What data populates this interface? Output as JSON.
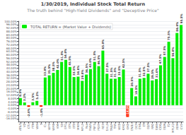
{
  "chart_data": {
    "type": "bar",
    "title": "1/30/2019, Individual Stock Total Return",
    "subtitle": "The truth behind \"High-Yield Dividends\" and \"Deceptive Price\"",
    "categories": [
      "AT&T",
      "VZ",
      "CTL",
      "FTR",
      "WIN",
      "T",
      "CL",
      "WPX",
      "WMB",
      "KMI",
      "SE",
      "EPD",
      "ETP",
      "ETE",
      "MMP",
      "MPLX",
      "PAA",
      "PAGP",
      "PBFX",
      "PSXP",
      "REX",
      "SHLX",
      "TRGP",
      "TRP",
      "WES",
      "KMI2",
      "OKE",
      "ENBL",
      "DCP",
      "ENB",
      "ET",
      "EQT",
      "RRC",
      "SWN",
      "COG",
      "EQM",
      "T2",
      "MPLX2",
      "XOM",
      "CVX"
    ],
    "series": [
      {
        "name": "TOTAL RETURN = (Market Value + Dividends)",
        "color": "#00ee00",
        "colors": [
          "#00ee00",
          "#00ee00",
          "#ff2200",
          "#00ee00",
          "#00ee00",
          "#ff2200",
          "#00ee00",
          "#00ee00",
          "#00ee00",
          "#00ee00",
          "#00ee00",
          "#00ee00",
          "#00ee00",
          "#00ee00",
          "#00ee00",
          "#00ee00",
          "#00ee00",
          "#00ee00",
          "#00ee00",
          "#00ee00",
          "#00ee00",
          "#00ee00",
          "#00ee00",
          "#00ee00",
          "#00ee00",
          "#00ee00",
          "#ff2200",
          "#00ee00",
          "#00ee00",
          "#00ee00",
          "#00ee00",
          "#00ee00",
          "#00ee00",
          "#00ee00",
          "#00ee00",
          "#00ee00",
          "#00ee00",
          "#00ee00",
          "#00ee00",
          "#00ee00"
        ],
        "values": [
          8.5,
          3.2,
          -2.0,
          3.5,
          5.2,
          -1.8,
          33.0,
          35.5,
          38.5,
          42.0,
          51.5,
          54.0,
          45.5,
          33.5,
          34.0,
          29.0,
          36.5,
          43.0,
          51.5,
          46.5,
          65.0,
          37.5,
          31.5,
          31.5,
          33.5,
          42.5,
          -14.0,
          20.5,
          10.5,
          31.5,
          32.5,
          37.5,
          29.5,
          31.0,
          47.5,
          57.5,
          75.5,
          56.0,
          86.0,
          95.5
        ],
        "value_labels": [
          "8.5%",
          "3.2%",
          "-2.0%",
          "3.5%",
          "5.2%",
          "-1.8%",
          "33.0%",
          "35.5%",
          "38.5%",
          "42.0%",
          "51.5%",
          "54.0%",
          "45.5%",
          "33.5%",
          "34.0%",
          "29.0%",
          "36.5%",
          "43.0%",
          "51.5%",
          "46.5%",
          "65.0%",
          "37.5%",
          "31.5%",
          "31.5%",
          "33.5%",
          "42.5%",
          "-14.0%",
          "20.5%",
          "10.5%",
          "31.5%",
          "32.5%",
          "37.5%",
          "29.5%",
          "31.0%",
          "47.5%",
          "57.5%",
          "75.5%",
          "56.0%",
          "86.0%",
          "95.5%"
        ]
      }
    ],
    "ylim": [
      -20,
      100
    ],
    "yticks": [
      {
        "value": -16,
        "label": "-16.00%"
      },
      {
        "value": -12,
        "label": "-12.00%"
      },
      {
        "value": -8,
        "label": "-8.00%"
      },
      {
        "value": -4,
        "label": "-4.00%"
      },
      {
        "value": 0,
        "label": "0.00%"
      },
      {
        "value": 4,
        "label": "4.00%"
      },
      {
        "value": 8,
        "label": "8.00%"
      },
      {
        "value": 12,
        "label": "12.00%"
      },
      {
        "value": 16,
        "label": "16.00%"
      },
      {
        "value": 20,
        "label": "20.00%"
      },
      {
        "value": 24,
        "label": "24.00%"
      },
      {
        "value": 28,
        "label": "28.00%"
      },
      {
        "value": 32,
        "label": "32.00%"
      },
      {
        "value": 36,
        "label": "36.00%"
      },
      {
        "value": 40,
        "label": "40.00%"
      },
      {
        "value": 44,
        "label": "44.00%"
      },
      {
        "value": 48,
        "label": "48.00%"
      },
      {
        "value": 52,
        "label": "52.00%"
      },
      {
        "value": 56,
        "label": "56.00%"
      },
      {
        "value": 60,
        "label": "60.00%"
      },
      {
        "value": 64,
        "label": "64.00%"
      },
      {
        "value": 68,
        "label": "68.00%"
      },
      {
        "value": 72,
        "label": "72.00%"
      },
      {
        "value": 76,
        "label": "76.00%"
      },
      {
        "value": 80,
        "label": "80.00%"
      },
      {
        "value": 84,
        "label": "84.00%"
      },
      {
        "value": 88,
        "label": "88.00%"
      },
      {
        "value": 92,
        "label": "92.00%"
      },
      {
        "value": 96,
        "label": "96.00%"
      },
      {
        "value": 100,
        "label": "100.00%"
      }
    ],
    "grid": true,
    "legend": "upper left",
    "data_labels": true
  }
}
